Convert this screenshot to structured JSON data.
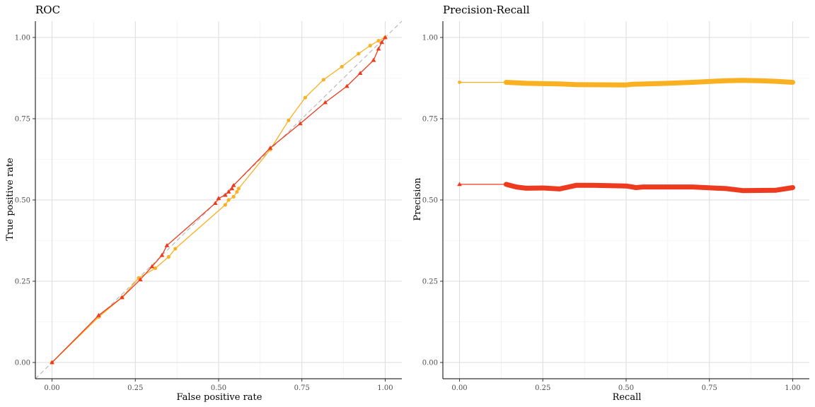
{
  "chart_data": [
    {
      "type": "line",
      "title": "ROC",
      "xlabel": "False positive rate",
      "ylabel": "True positive rate",
      "xlim": [
        -0.05,
        1.05
      ],
      "ylim": [
        -0.05,
        1.05
      ],
      "xticks": [
        "0.00",
        "0.25",
        "0.50",
        "0.75",
        "1.00"
      ],
      "yticks": [
        "0.00",
        "0.25",
        "0.50",
        "0.75",
        "1.00"
      ],
      "grid": true,
      "reference_line": "diagonal dashed",
      "series": [
        {
          "color": "#f9b122",
          "marker": "circle",
          "points": [
            [
              0,
              0
            ],
            [
              0.14,
              0.14
            ],
            [
              0.21,
              0.2
            ],
            [
              0.26,
              0.26
            ],
            [
              0.31,
              0.29
            ],
            [
              0.35,
              0.325
            ],
            [
              0.37,
              0.35
            ],
            [
              0.52,
              0.485
            ],
            [
              0.53,
              0.5
            ],
            [
              0.545,
              0.51
            ],
            [
              0.555,
              0.525
            ],
            [
              0.56,
              0.535
            ],
            [
              0.655,
              0.655
            ],
            [
              0.71,
              0.745
            ],
            [
              0.76,
              0.815
            ],
            [
              0.815,
              0.87
            ],
            [
              0.87,
              0.91
            ],
            [
              0.92,
              0.95
            ],
            [
              0.955,
              0.975
            ],
            [
              0.98,
              0.99
            ],
            [
              1.0,
              1.0
            ]
          ]
        },
        {
          "color": "#ee3a1f",
          "marker": "triangle",
          "points": [
            [
              0,
              0
            ],
            [
              0.14,
              0.145
            ],
            [
              0.21,
              0.2
            ],
            [
              0.265,
              0.255
            ],
            [
              0.3,
              0.295
            ],
            [
              0.33,
              0.33
            ],
            [
              0.345,
              0.36
            ],
            [
              0.49,
              0.49
            ],
            [
              0.5,
              0.505
            ],
            [
              0.52,
              0.515
            ],
            [
              0.53,
              0.525
            ],
            [
              0.54,
              0.535
            ],
            [
              0.545,
              0.545
            ],
            [
              0.655,
              0.66
            ],
            [
              0.745,
              0.735
            ],
            [
              0.82,
              0.8
            ],
            [
              0.885,
              0.85
            ],
            [
              0.925,
              0.89
            ],
            [
              0.965,
              0.93
            ],
            [
              0.98,
              0.965
            ],
            [
              0.99,
              0.985
            ],
            [
              1.0,
              1.0
            ]
          ]
        }
      ]
    },
    {
      "type": "line",
      "title": "Precision-Recall",
      "xlabel": "Recall",
      "ylabel": "Precision",
      "xlim": [
        -0.05,
        1.05
      ],
      "ylim": [
        -0.05,
        1.05
      ],
      "xticks": [
        "0.00",
        "0.25",
        "0.50",
        "0.75",
        "1.00"
      ],
      "yticks": [
        "0.00",
        "0.25",
        "0.50",
        "0.75",
        "1.00"
      ],
      "grid": true,
      "series": [
        {
          "color": "#f9b122",
          "marker": "circle",
          "points": [
            [
              0,
              0.862
            ],
            [
              0.14,
              0.862
            ],
            [
              0.2,
              0.859
            ],
            [
              0.3,
              0.857
            ],
            [
              0.35,
              0.855
            ],
            [
              0.5,
              0.854
            ],
            [
              0.52,
              0.856
            ],
            [
              0.6,
              0.858
            ],
            [
              0.7,
              0.862
            ],
            [
              0.8,
              0.867
            ],
            [
              0.85,
              0.868
            ],
            [
              0.9,
              0.867
            ],
            [
              0.95,
              0.865
            ],
            [
              1.0,
              0.862
            ]
          ]
        },
        {
          "color": "#ee3a1f",
          "marker": "triangle",
          "points": [
            [
              0,
              0.548
            ],
            [
              0.14,
              0.548
            ],
            [
              0.17,
              0.54
            ],
            [
              0.2,
              0.536
            ],
            [
              0.25,
              0.537
            ],
            [
              0.3,
              0.534
            ],
            [
              0.35,
              0.545
            ],
            [
              0.4,
              0.545
            ],
            [
              0.5,
              0.543
            ],
            [
              0.53,
              0.538
            ],
            [
              0.55,
              0.54
            ],
            [
              0.65,
              0.54
            ],
            [
              0.7,
              0.54
            ],
            [
              0.8,
              0.535
            ],
            [
              0.85,
              0.529
            ],
            [
              0.95,
              0.53
            ],
            [
              1.0,
              0.538
            ]
          ]
        }
      ]
    }
  ]
}
